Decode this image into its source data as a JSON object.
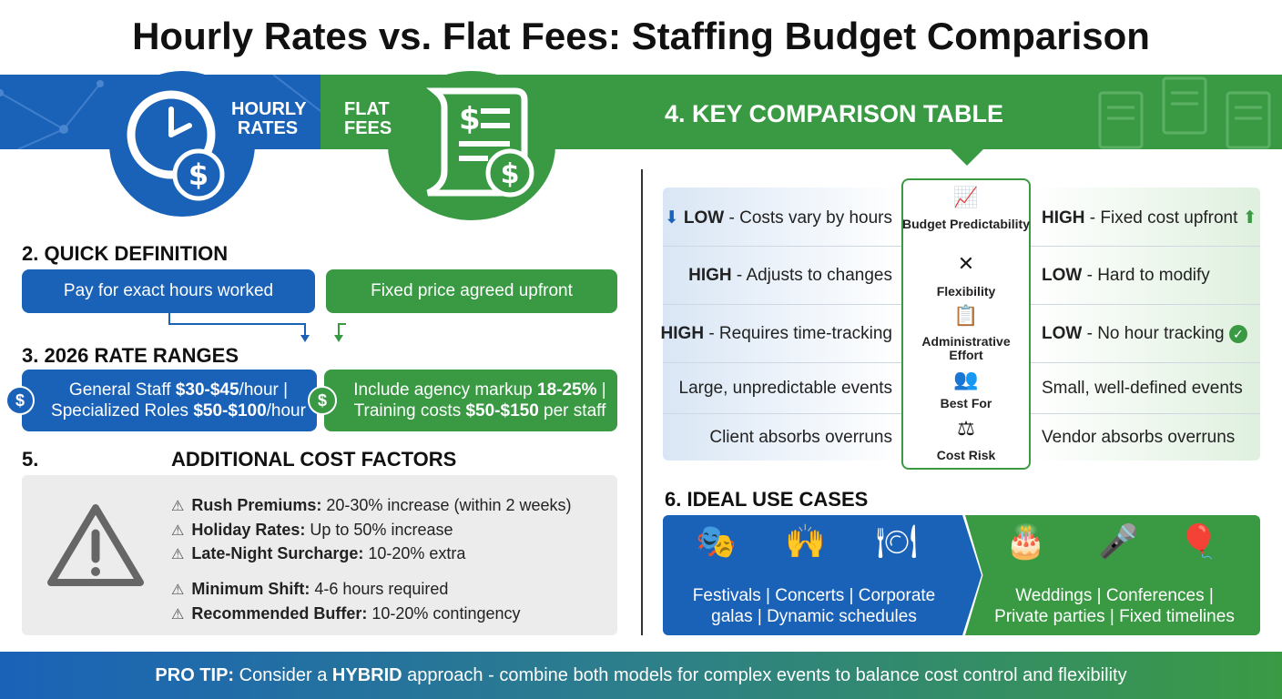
{
  "title": "Hourly Rates vs. Flat Fees: Staffing Budget Comparison",
  "header": {
    "hourly_label_1": "HOURLY",
    "hourly_label_2": "RATES",
    "flat_label_1": "FLAT",
    "flat_label_2": "FEES",
    "table_title": "4. KEY COMPARISON TABLE"
  },
  "definition": {
    "heading": "2. QUICK DEFINITION",
    "hourly": "Pay for exact hours worked",
    "flat": "Fixed price agreed upfront"
  },
  "rates": {
    "heading": "3. 2026 RATE RANGES",
    "hourly_line1_a": "General Staff ",
    "hourly_line1_b": "$30-$45",
    "hourly_line1_c": "/hour |",
    "hourly_line2_a": "Specialized Roles ",
    "hourly_line2_b": "$50-$100",
    "hourly_line2_c": "/hour",
    "flat_line1_a": "Include agency markup ",
    "flat_line1_b": "18-25%",
    "flat_line1_c": " |",
    "flat_line2_a": "Training costs ",
    "flat_line2_b": "$50-$150",
    "flat_line2_c": " per staff",
    "coin": "$"
  },
  "costs": {
    "number": "5.",
    "heading": "ADDITIONAL COST FACTORS",
    "items": [
      {
        "label": "Rush Premiums:",
        "text": " 20-30% increase (within 2 weeks)"
      },
      {
        "label": "Holiday Rates:",
        "text": " Up to 50% increase"
      },
      {
        "label": "Late-Night Surcharge:",
        "text": " 10-20% extra"
      },
      {
        "label": "Minimum Shift:",
        "text": " 4-6 hours required"
      },
      {
        "label": "Recommended Buffer:",
        "text": " 10-20% contingency"
      }
    ]
  },
  "table": {
    "rows": [
      {
        "left_b": "LOW",
        "left": " - Costs vary by hours",
        "mid": "Budget Predictability",
        "right_b": "HIGH",
        "right": " - Fixed cost upfront"
      },
      {
        "left_b": "HIGH",
        "left": " - Adjusts to changes",
        "mid": "Flexibility",
        "right_b": "LOW",
        "right": " - Hard to modify"
      },
      {
        "left_b": "HIGH",
        "left": " - Requires time-tracking",
        "mid": "Administrative Effort",
        "right_b": "LOW",
        "right": " - No hour tracking"
      },
      {
        "left_b": "",
        "left": "Large, unpredictable events",
        "mid": "Best For",
        "right_b": "",
        "right": "Small, well-defined events"
      },
      {
        "left_b": "",
        "left": "Client absorbs overruns",
        "mid": "Cost Risk",
        "right_b": "",
        "right": "Vendor absorbs overruns"
      }
    ]
  },
  "use_cases": {
    "heading": "6. IDEAL USE CASES",
    "hourly_line1": "Festivals | Concerts | Corporate",
    "hourly_line2": "galas | Dynamic schedules",
    "flat_line1": "Weddings | Conferences |",
    "flat_line2": "Private parties | Fixed timelines"
  },
  "footer": {
    "a": "PRO TIP:",
    "b": " Consider a ",
    "c": "HYBRID",
    "d": " approach - combine both models for complex events to balance cost control and flexibility"
  },
  "colors": {
    "blue": "#1a62b8",
    "green": "#3a9a44"
  }
}
